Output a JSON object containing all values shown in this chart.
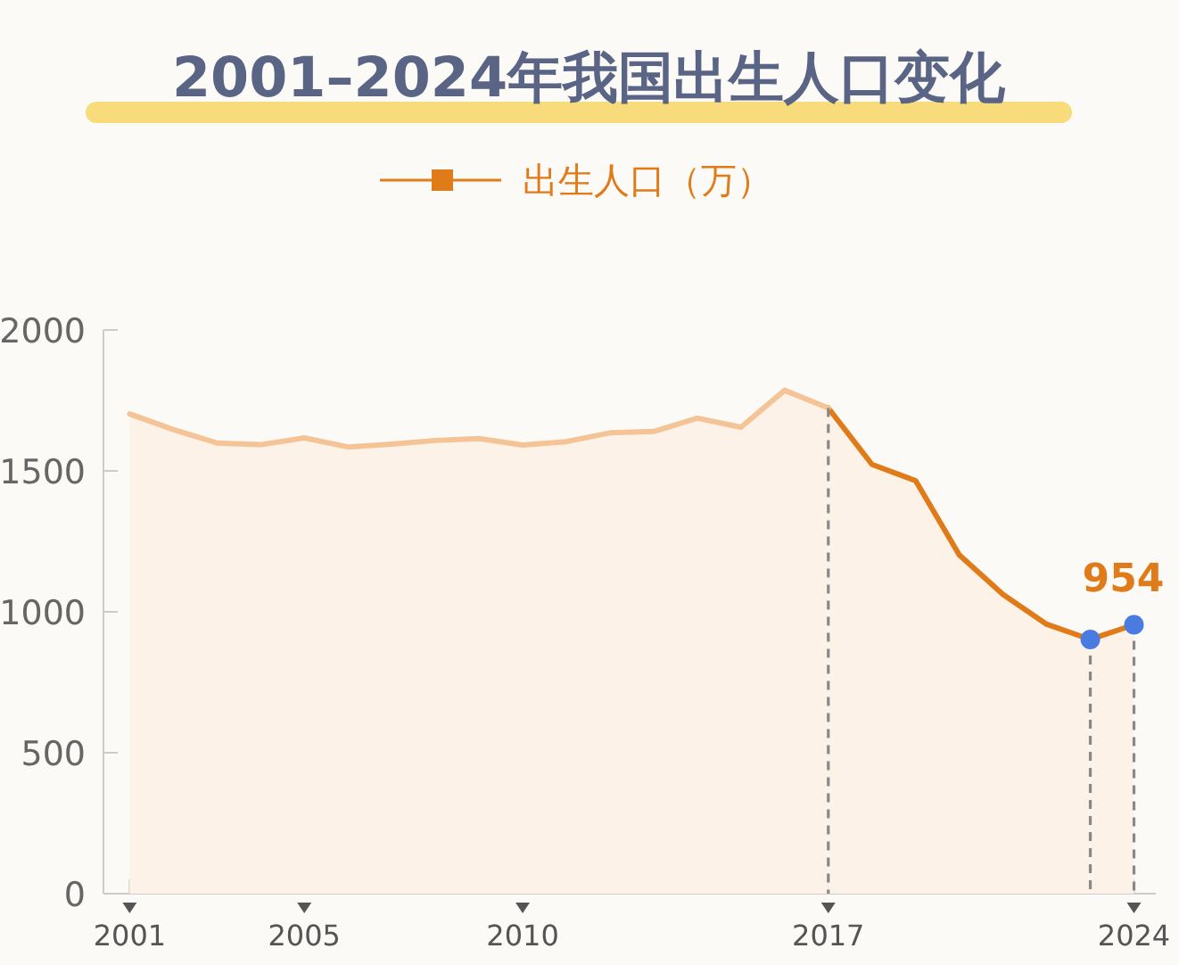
{
  "chart_data": {
    "type": "area",
    "title": "2001–2024年我国出生人口变化",
    "x": [
      2001,
      2002,
      2003,
      2004,
      2005,
      2006,
      2007,
      2008,
      2009,
      2010,
      2011,
      2012,
      2013,
      2014,
      2015,
      2016,
      2017,
      2018,
      2019,
      2020,
      2021,
      2022,
      2023,
      2024
    ],
    "series": [
      {
        "name": "出生人口（万）",
        "color": "#e07b1a",
        "values": [
          null,
          null,
          null,
          null,
          null,
          null,
          null,
          null,
          null,
          null,
          null,
          null,
          null,
          null,
          null,
          null,
          1723,
          1523,
          1465,
          1202,
          1062,
          956,
          902,
          954
        ]
      },
      {
        "color": "#f5c496",
        "values": [
          1702,
          1647,
          1599,
          1593,
          1617,
          1585,
          1595,
          1608,
          1615,
          1592,
          1604,
          1635,
          1640,
          1687,
          1655,
          1786,
          1723,
          null,
          null,
          null,
          null,
          null,
          null,
          null
        ]
      },
      {
        "type": "scatter",
        "color": "#4a7be0",
        "x": [
          2023,
          2024
        ],
        "values": [
          902,
          954
        ],
        "value_labels": [
          null,
          "954"
        ]
      }
    ],
    "xlim": [
      2000.4,
      2024.5
    ],
    "xticks": [
      2001,
      2005,
      2010,
      2017,
      2024
    ],
    "ylim": [
      0,
      2000
    ],
    "yticks": [
      0,
      500,
      1000,
      1500,
      2000
    ],
    "ref_lines": [
      {
        "axis": "x",
        "value": 2017,
        "color": "#888888",
        "line_style": "dashed"
      },
      {
        "axis": "x",
        "value": 2023,
        "color": "#888888",
        "line_style": "dashed"
      },
      {
        "axis": "x",
        "value": 2024,
        "color": "#888888",
        "line_style": "dashed"
      }
    ],
    "legend": "top",
    "grid": false
  }
}
